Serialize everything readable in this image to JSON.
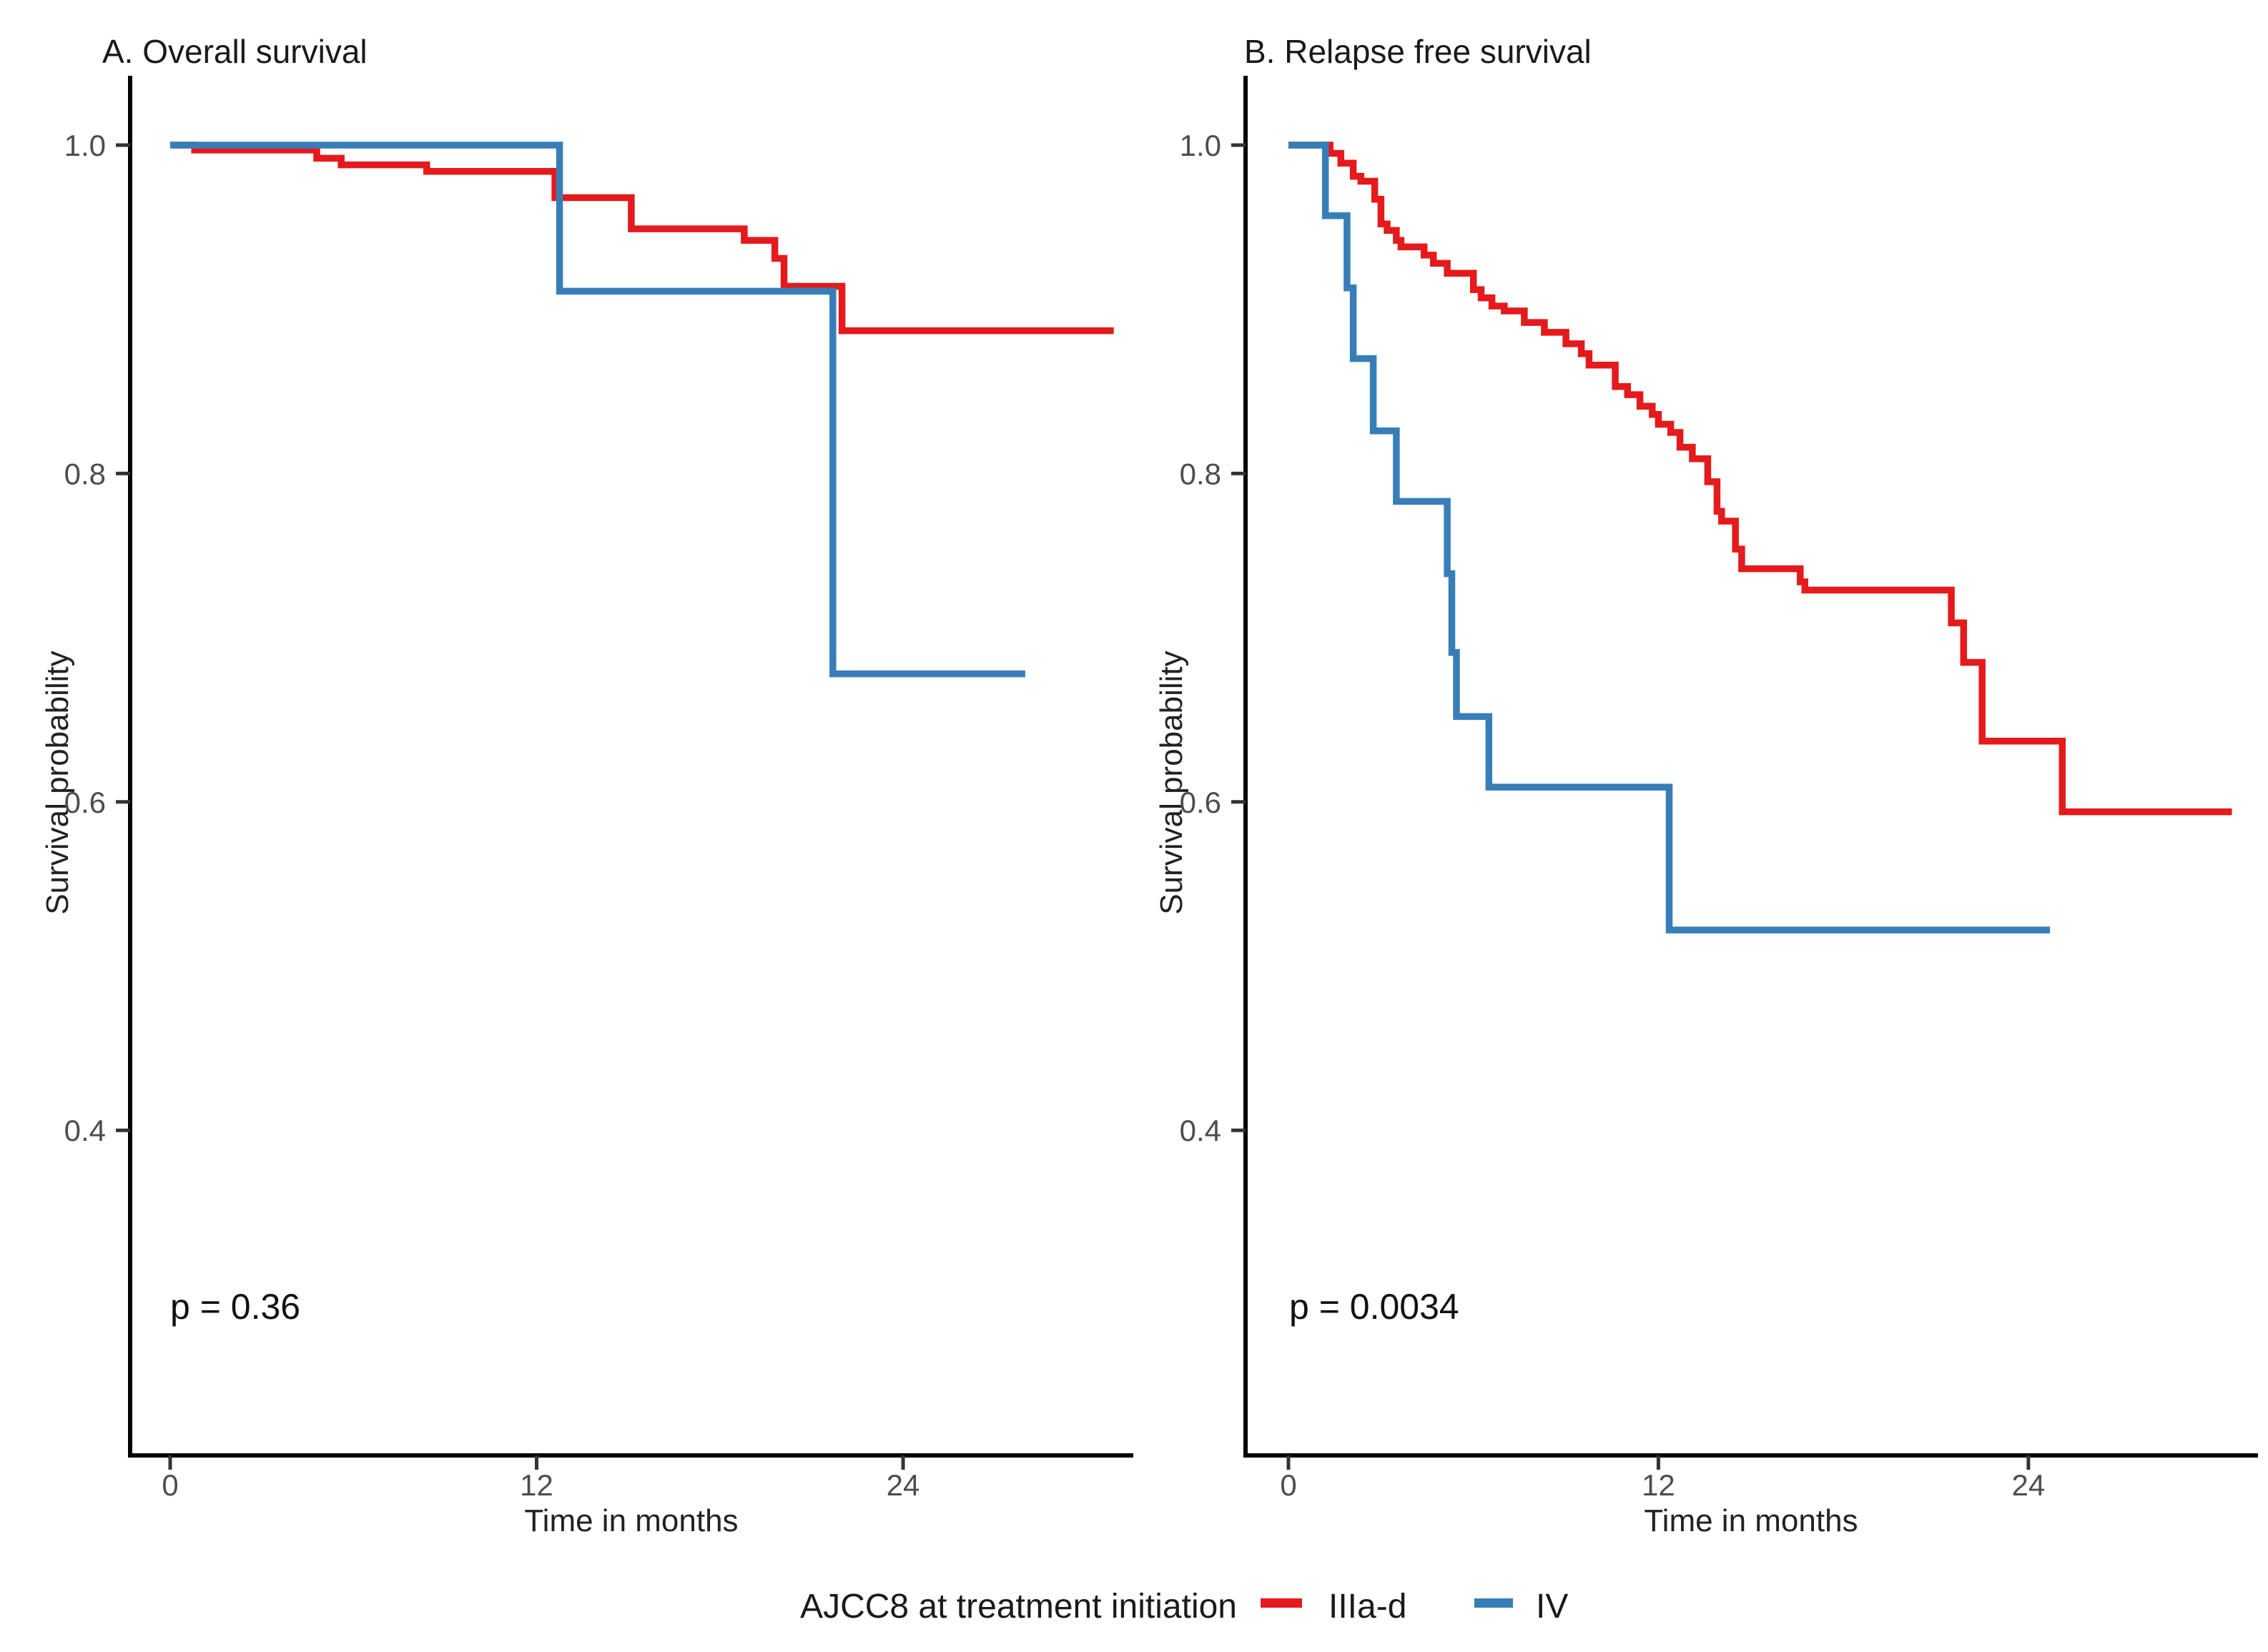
{
  "figure": {
    "legend": {
      "title": "AJCC8 at treatment initiation",
      "items": [
        {
          "label": "IIIa-d",
          "color": "#E41A1C"
        },
        {
          "label": "IV",
          "color": "#377EB8"
        }
      ],
      "position": "bottom"
    },
    "accent_colors": {
      "red": "#E41A1C",
      "blue": "#377EB8"
    }
  },
  "chart_data": [
    {
      "type": "line",
      "subtype": "kaplan-meier-step",
      "title": "A. Overall survival",
      "xlabel": "Time in months",
      "ylabel": "Survival probability",
      "p_value": "p = 0.36",
      "x_ticks": [
        0,
        12,
        24
      ],
      "y_ticks": [
        1.0,
        0.8,
        0.6,
        0.4
      ],
      "xlim": [
        0,
        31
      ],
      "ylim": [
        0.2,
        1.04
      ],
      "grid": "off",
      "series": [
        {
          "name": "IIIa-d",
          "color": "#E41A1C",
          "steps": [
            [
              0,
              1.0
            ],
            [
              0.8,
              0.997
            ],
            [
              4.8,
              0.992
            ],
            [
              5.6,
              0.988
            ],
            [
              8.4,
              0.984
            ],
            [
              12.6,
              0.968
            ],
            [
              15.1,
              0.949
            ],
            [
              18.8,
              0.942
            ],
            [
              19.8,
              0.931
            ],
            [
              20.1,
              0.914
            ],
            [
              22.0,
              0.887
            ],
            [
              30.9,
              0.887
            ]
          ]
        },
        {
          "name": "IV",
          "color": "#377EB8",
          "steps": [
            [
              0,
              1.0
            ],
            [
              12.75,
              0.911
            ],
            [
              21.7,
              0.678
            ],
            [
              28.0,
              0.678
            ]
          ]
        }
      ]
    },
    {
      "type": "line",
      "subtype": "kaplan-meier-step",
      "title": "B. Relapse free survival",
      "xlabel": "Time in months",
      "ylabel": "Survival probability",
      "p_value": "p = 0.0034",
      "x_ticks": [
        0,
        12,
        24
      ],
      "y_ticks": [
        1.0,
        0.8,
        0.6,
        0.4
      ],
      "xlim": [
        0,
        31
      ],
      "ylim": [
        0.2,
        1.04
      ],
      "grid": "off",
      "series": [
        {
          "name": "IIIa-d",
          "color": "#E41A1C",
          "steps": [
            [
              0,
              1.0
            ],
            [
              1.35,
              0.995
            ],
            [
              1.7,
              0.989
            ],
            [
              2.1,
              0.981
            ],
            [
              2.35,
              0.978
            ],
            [
              2.8,
              0.967
            ],
            [
              3.0,
              0.952
            ],
            [
              3.2,
              0.948
            ],
            [
              3.5,
              0.942
            ],
            [
              3.65,
              0.938
            ],
            [
              4.4,
              0.933
            ],
            [
              4.7,
              0.928
            ],
            [
              5.15,
              0.922
            ],
            [
              6.0,
              0.912
            ],
            [
              6.25,
              0.907
            ],
            [
              6.6,
              0.902
            ],
            [
              7.0,
              0.899
            ],
            [
              7.65,
              0.892
            ],
            [
              8.3,
              0.886
            ],
            [
              9.0,
              0.879
            ],
            [
              9.5,
              0.873
            ],
            [
              9.75,
              0.866
            ],
            [
              10.6,
              0.853
            ],
            [
              11.0,
              0.848
            ],
            [
              11.4,
              0.841
            ],
            [
              11.8,
              0.836
            ],
            [
              12.0,
              0.83
            ],
            [
              12.4,
              0.825
            ],
            [
              12.7,
              0.816
            ],
            [
              13.1,
              0.809
            ],
            [
              13.6,
              0.795
            ],
            [
              13.9,
              0.777
            ],
            [
              14.05,
              0.771
            ],
            [
              14.5,
              0.754
            ],
            [
              14.7,
              0.742
            ],
            [
              16.6,
              0.734
            ],
            [
              16.75,
              0.729
            ],
            [
              21.5,
              0.709
            ],
            [
              21.9,
              0.685
            ],
            [
              22.5,
              0.637
            ],
            [
              25.1,
              0.594
            ],
            [
              30.6,
              0.594
            ]
          ]
        },
        {
          "name": "IV",
          "color": "#377EB8",
          "steps": [
            [
              0,
              1.0
            ],
            [
              1.2,
              0.957
            ],
            [
              1.9,
              0.913
            ],
            [
              2.1,
              0.87
            ],
            [
              2.75,
              0.826
            ],
            [
              3.5,
              0.783
            ],
            [
              5.15,
              0.739
            ],
            [
              5.3,
              0.691
            ],
            [
              5.45,
              0.652
            ],
            [
              6.5,
              0.609
            ],
            [
              12.35,
              0.522
            ],
            [
              24.7,
              0.522
            ]
          ]
        }
      ]
    }
  ]
}
